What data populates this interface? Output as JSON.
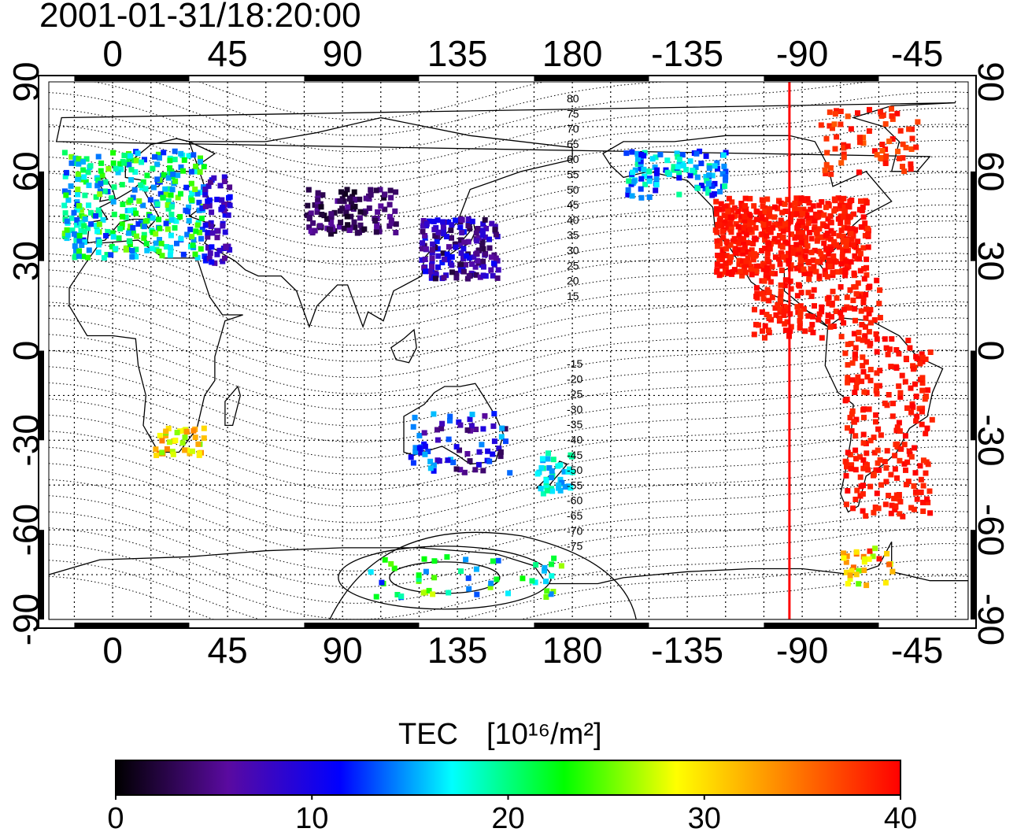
{
  "timestamp": "2001-01-31/18:20:00",
  "map": {
    "lon_ticks_top": [
      "0",
      "45",
      "90",
      "135",
      "180",
      "-135",
      "-90",
      "-45"
    ],
    "lon_ticks_bottom": [
      "0",
      "45",
      "90",
      "135",
      "180",
      "-135",
      "-90",
      "-45"
    ],
    "lat_ticks_left": [
      "90",
      "60",
      "30",
      "0",
      "-30",
      "-60",
      "-90"
    ],
    "lat_ticks_right": [
      "90",
      "60",
      "30",
      "0",
      "-30",
      "-60",
      "-90"
    ],
    "lon_range": [
      -25,
      335
    ],
    "lat_range": [
      -90,
      90
    ],
    "grid": true,
    "terminator_lon": -95,
    "terminator_color": "#ff0000",
    "contour_labels_north": [
      "80",
      "75",
      "70",
      "65",
      "60",
      "55",
      "50",
      "45",
      "40",
      "35",
      "30",
      "25",
      "20",
      "15"
    ],
    "contour_labels_south": [
      "-15",
      "-20",
      "-25",
      "-30",
      "-35",
      "-40",
      "-45",
      "-50",
      "-55",
      "-60",
      "-65",
      "-70",
      "-75"
    ]
  },
  "colorbar": {
    "title": "TEC",
    "unit": "[10¹⁶/m²]",
    "ticks": [
      "0",
      "10",
      "20",
      "30",
      "40"
    ],
    "min": 0,
    "max": 40,
    "colormap": [
      "#000000",
      "#5a0aa0",
      "#0000ff",
      "#00ffff",
      "#00ff00",
      "#ffff00",
      "#ff8000",
      "#ff0000"
    ]
  }
}
